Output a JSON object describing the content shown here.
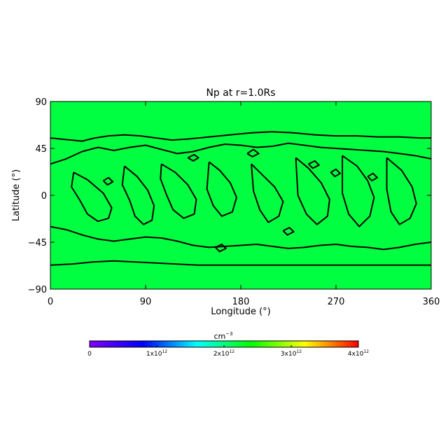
{
  "chart_data": {
    "type": "heatmap",
    "title": "Np at r=1.0Rs",
    "xlabel": "Longitude (°)",
    "ylabel": "Latitude (°)",
    "xlim": [
      0,
      360
    ],
    "ylim": [
      -90,
      90
    ],
    "xticks": [
      "0",
      "90",
      "180",
      "270",
      "360"
    ],
    "xtick_values": [
      0,
      90,
      180,
      270,
      360
    ],
    "yticks": [
      "90",
      "45",
      "0",
      "−45",
      "−90"
    ],
    "ytick_values": [
      90,
      45,
      0,
      -45,
      -90
    ],
    "field_color": "#00ff40",
    "contour_color": "#000000",
    "contours": [
      {
        "name": "north-boundary",
        "points": [
          [
            0,
            55
          ],
          [
            10,
            54
          ],
          [
            20,
            53
          ],
          [
            30,
            52
          ],
          [
            42,
            55
          ],
          [
            55,
            57
          ],
          [
            70,
            58
          ],
          [
            85,
            57
          ],
          [
            100,
            55
          ],
          [
            115,
            53
          ],
          [
            130,
            54
          ],
          [
            150,
            56
          ],
          [
            170,
            58
          ],
          [
            190,
            60
          ],
          [
            210,
            61
          ],
          [
            230,
            60
          ],
          [
            250,
            58
          ],
          [
            270,
            57
          ],
          [
            290,
            57
          ],
          [
            310,
            56
          ],
          [
            330,
            56
          ],
          [
            350,
            55
          ],
          [
            360,
            55
          ]
        ]
      },
      {
        "name": "south-boundary",
        "points": [
          [
            0,
            -67
          ],
          [
            20,
            -66
          ],
          [
            40,
            -64
          ],
          [
            60,
            -63
          ],
          [
            80,
            -64
          ],
          [
            100,
            -65
          ],
          [
            120,
            -66
          ],
          [
            140,
            -67
          ],
          [
            160,
            -67
          ],
          [
            180,
            -67
          ],
          [
            200,
            -67
          ],
          [
            220,
            -67
          ],
          [
            240,
            -67
          ],
          [
            260,
            -67
          ],
          [
            280,
            -67
          ],
          [
            300,
            -67
          ],
          [
            320,
            -67
          ],
          [
            340,
            -67
          ],
          [
            360,
            -67
          ]
        ]
      },
      {
        "name": "inner-band-north",
        "points": [
          [
            0,
            30
          ],
          [
            15,
            35
          ],
          [
            30,
            42
          ],
          [
            45,
            46
          ],
          [
            60,
            43
          ],
          [
            75,
            46
          ],
          [
            90,
            48
          ],
          [
            105,
            44
          ],
          [
            120,
            40
          ],
          [
            135,
            42
          ],
          [
            150,
            46
          ],
          [
            165,
            49
          ],
          [
            180,
            48
          ],
          [
            195,
            46
          ],
          [
            210,
            47
          ],
          [
            225,
            50
          ],
          [
            240,
            48
          ],
          [
            255,
            46
          ],
          [
            270,
            45
          ],
          [
            285,
            44
          ],
          [
            300,
            43
          ],
          [
            315,
            42
          ],
          [
            330,
            40
          ],
          [
            345,
            38
          ],
          [
            360,
            35
          ]
        ]
      },
      {
        "name": "inner-band-south",
        "points": [
          [
            0,
            -30
          ],
          [
            15,
            -33
          ],
          [
            30,
            -38
          ],
          [
            45,
            -42
          ],
          [
            60,
            -44
          ],
          [
            75,
            -42
          ],
          [
            90,
            -40
          ],
          [
            105,
            -41
          ],
          [
            120,
            -44
          ],
          [
            135,
            -48
          ],
          [
            150,
            -50
          ],
          [
            165,
            -49
          ],
          [
            180,
            -48
          ],
          [
            195,
            -47
          ],
          [
            210,
            -49
          ],
          [
            225,
            -51
          ],
          [
            240,
            -50
          ],
          [
            255,
            -48
          ],
          [
            270,
            -47
          ],
          [
            285,
            -49
          ],
          [
            300,
            -50
          ],
          [
            315,
            -52
          ],
          [
            330,
            -50
          ],
          [
            345,
            -47
          ],
          [
            360,
            -45
          ]
        ]
      },
      {
        "name": "tongue-a",
        "points": [
          [
            22,
            22
          ],
          [
            35,
            15
          ],
          [
            50,
            2
          ],
          [
            58,
            -12
          ],
          [
            55,
            -22
          ],
          [
            45,
            -25
          ],
          [
            35,
            -18
          ],
          [
            28,
            -5
          ],
          [
            20,
            8
          ],
          [
            22,
            22
          ]
        ]
      },
      {
        "name": "tongue-b",
        "points": [
          [
            70,
            28
          ],
          [
            82,
            18
          ],
          [
            92,
            5
          ],
          [
            98,
            -10
          ],
          [
            96,
            -24
          ],
          [
            88,
            -28
          ],
          [
            80,
            -20
          ],
          [
            75,
            -5
          ],
          [
            68,
            10
          ],
          [
            70,
            28
          ]
        ]
      },
      {
        "name": "tongue-c",
        "points": [
          [
            105,
            30
          ],
          [
            118,
            22
          ],
          [
            130,
            10
          ],
          [
            138,
            -4
          ],
          [
            136,
            -18
          ],
          [
            126,
            -22
          ],
          [
            116,
            -14
          ],
          [
            110,
            0
          ],
          [
            104,
            16
          ],
          [
            105,
            30
          ]
        ]
      },
      {
        "name": "tongue-d",
        "points": [
          [
            150,
            32
          ],
          [
            160,
            24
          ],
          [
            170,
            12
          ],
          [
            176,
            -2
          ],
          [
            172,
            -16
          ],
          [
            162,
            -20
          ],
          [
            154,
            -10
          ],
          [
            148,
            6
          ],
          [
            150,
            32
          ]
        ]
      },
      {
        "name": "tongue-e",
        "points": [
          [
            190,
            30
          ],
          [
            200,
            20
          ],
          [
            212,
            8
          ],
          [
            220,
            -6
          ],
          [
            216,
            -20
          ],
          [
            206,
            -26
          ],
          [
            198,
            -14
          ],
          [
            192,
            4
          ],
          [
            190,
            30
          ]
        ]
      },
      {
        "name": "tongue-f",
        "points": [
          [
            232,
            36
          ],
          [
            244,
            26
          ],
          [
            256,
            12
          ],
          [
            264,
            -4
          ],
          [
            262,
            -20
          ],
          [
            252,
            -28
          ],
          [
            242,
            -18
          ],
          [
            234,
            0
          ],
          [
            232,
            36
          ]
        ]
      },
      {
        "name": "tongue-g",
        "points": [
          [
            276,
            38
          ],
          [
            290,
            28
          ],
          [
            300,
            14
          ],
          [
            306,
            -2
          ],
          [
            302,
            -20
          ],
          [
            292,
            -30
          ],
          [
            282,
            -18
          ],
          [
            276,
            2
          ],
          [
            276,
            38
          ]
        ]
      },
      {
        "name": "tongue-h",
        "points": [
          [
            318,
            36
          ],
          [
            332,
            24
          ],
          [
            342,
            8
          ],
          [
            346,
            -8
          ],
          [
            340,
            -22
          ],
          [
            330,
            -28
          ],
          [
            322,
            -16
          ],
          [
            318,
            6
          ],
          [
            318,
            36
          ]
        ]
      },
      {
        "name": "island-1",
        "points": [
          [
            130,
            36
          ],
          [
            136,
            39
          ],
          [
            140,
            36
          ],
          [
            135,
            33
          ],
          [
            130,
            36
          ]
        ]
      },
      {
        "name": "island-2",
        "points": [
          [
            186,
            40
          ],
          [
            192,
            44
          ],
          [
            197,
            40
          ],
          [
            191,
            37
          ],
          [
            186,
            40
          ]
        ]
      },
      {
        "name": "island-3",
        "points": [
          [
            244,
            30
          ],
          [
            250,
            33
          ],
          [
            254,
            29
          ],
          [
            248,
            26
          ],
          [
            244,
            30
          ]
        ]
      },
      {
        "name": "island-4",
        "points": [
          [
            300,
            18
          ],
          [
            305,
            21
          ],
          [
            309,
            17
          ],
          [
            304,
            14
          ],
          [
            300,
            18
          ]
        ]
      },
      {
        "name": "island-5",
        "points": [
          [
            220,
            -34
          ],
          [
            226,
            -31
          ],
          [
            230,
            -35
          ],
          [
            224,
            -38
          ],
          [
            220,
            -34
          ]
        ]
      },
      {
        "name": "island-6",
        "points": [
          [
            156,
            -50
          ],
          [
            162,
            -47
          ],
          [
            166,
            -51
          ],
          [
            160,
            -54
          ],
          [
            156,
            -50
          ]
        ]
      },
      {
        "name": "island-7",
        "points": [
          [
            50,
            14
          ],
          [
            55,
            17
          ],
          [
            59,
            13
          ],
          [
            54,
            10
          ],
          [
            50,
            14
          ]
        ]
      },
      {
        "name": "island-8",
        "points": [
          [
            265,
            22
          ],
          [
            270,
            25
          ],
          [
            274,
            21
          ],
          [
            269,
            18
          ],
          [
            265,
            22
          ]
        ]
      }
    ],
    "colorbar": {
      "title": "cm",
      "title_exponent": "−3",
      "range": [
        0,
        4000000000000
      ],
      "tick_labels": [
        {
          "base": "0",
          "exp": ""
        },
        {
          "base": "1x10",
          "exp": "12"
        },
        {
          "base": "2x10",
          "exp": "12"
        },
        {
          "base": "3x10",
          "exp": "12"
        },
        {
          "base": "4x10",
          "exp": "12"
        }
      ],
      "tick_values": [
        0,
        1000000000000,
        2000000000000,
        3000000000000,
        4000000000000
      ],
      "colors": [
        "#8000ff",
        "#0000ff",
        "#00ffff",
        "#00ff00",
        "#ffff00",
        "#ff0000"
      ]
    }
  }
}
